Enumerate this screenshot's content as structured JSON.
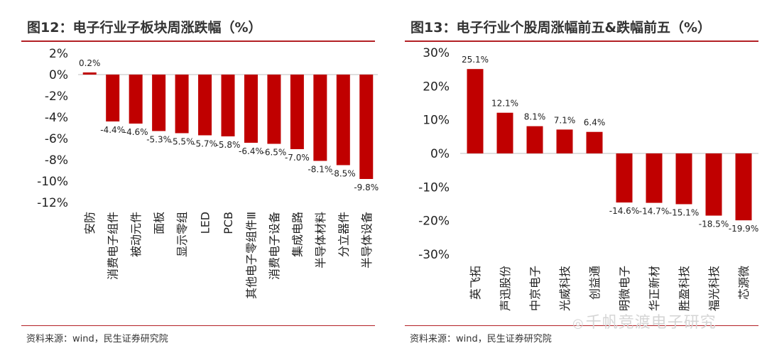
{
  "charts": [
    {
      "title": "图12：电子行业子板块周涨跌幅（%）",
      "source": "资料来源：wind，民生证券研究院",
      "chart_data": {
        "type": "bar",
        "categories": [
          "安防",
          "消费电子组件",
          "被动元件",
          "面板",
          "显示零组",
          "LED",
          "PCB",
          "其他电子零组件Ⅲ",
          "消费电子设备",
          "集成电路",
          "半导体材料",
          "分立器件",
          "半导体设备"
        ],
        "values": [
          0.2,
          -4.4,
          -4.6,
          -5.3,
          -5.5,
          -5.7,
          -5.8,
          -6.4,
          -6.5,
          -7.0,
          -8.1,
          -8.5,
          -9.8
        ],
        "value_labels": [
          "0.2%",
          "-4.4%",
          "-4.6%",
          "-5.3%",
          "-5.5%",
          "-5.7%",
          "-5.8%",
          "-6.4%",
          "-6.5%",
          "-7.0%",
          "-8.1%",
          "-8.5%",
          "-9.8%"
        ],
        "ylim": [
          -12,
          2
        ],
        "yticks": [
          2,
          0,
          -2,
          -4,
          -6,
          -8,
          -10,
          -12
        ],
        "ytick_labels": [
          "2%",
          "0%",
          "-2%",
          "-4%",
          "-6%",
          "-8%",
          "-10%",
          "-12%"
        ],
        "xlabel": "",
        "ylabel": "",
        "bar_color": "#c00000"
      }
    },
    {
      "title": "图13：电子行业个股周涨幅前五&跌幅前五（%）",
      "source": "资料来源：wind，民生证券研究院",
      "chart_data": {
        "type": "bar",
        "categories": [
          "英飞拓",
          "声迅股份",
          "中京电子",
          "光威科技",
          "创益通",
          "明微电子",
          "华正新材",
          "胜盈科技",
          "福光科技",
          "芯源微"
        ],
        "values": [
          25.1,
          12.1,
          8.1,
          7.1,
          6.4,
          -14.6,
          -14.7,
          -15.1,
          -18.5,
          -19.9
        ],
        "value_labels": [
          "25.1%",
          "12.1%",
          "8.1%",
          "7.1%",
          "6.4%",
          "-14.6%",
          "-14.7%",
          "-15.1%",
          "-18.5%",
          "-19.9%"
        ],
        "ylim": [
          -30,
          30
        ],
        "yticks": [
          30,
          20,
          10,
          0,
          -10,
          -20,
          -30
        ],
        "ytick_labels": [
          "30%",
          "20%",
          "10%",
          "0%",
          "-10%",
          "-20%",
          "-30%"
        ],
        "xlabel": "",
        "ylabel": "",
        "bar_color": "#c00000"
      }
    }
  ],
  "watermark": {
    "icon": "wechat-icon",
    "text": "千帆竞渡电子研究"
  }
}
